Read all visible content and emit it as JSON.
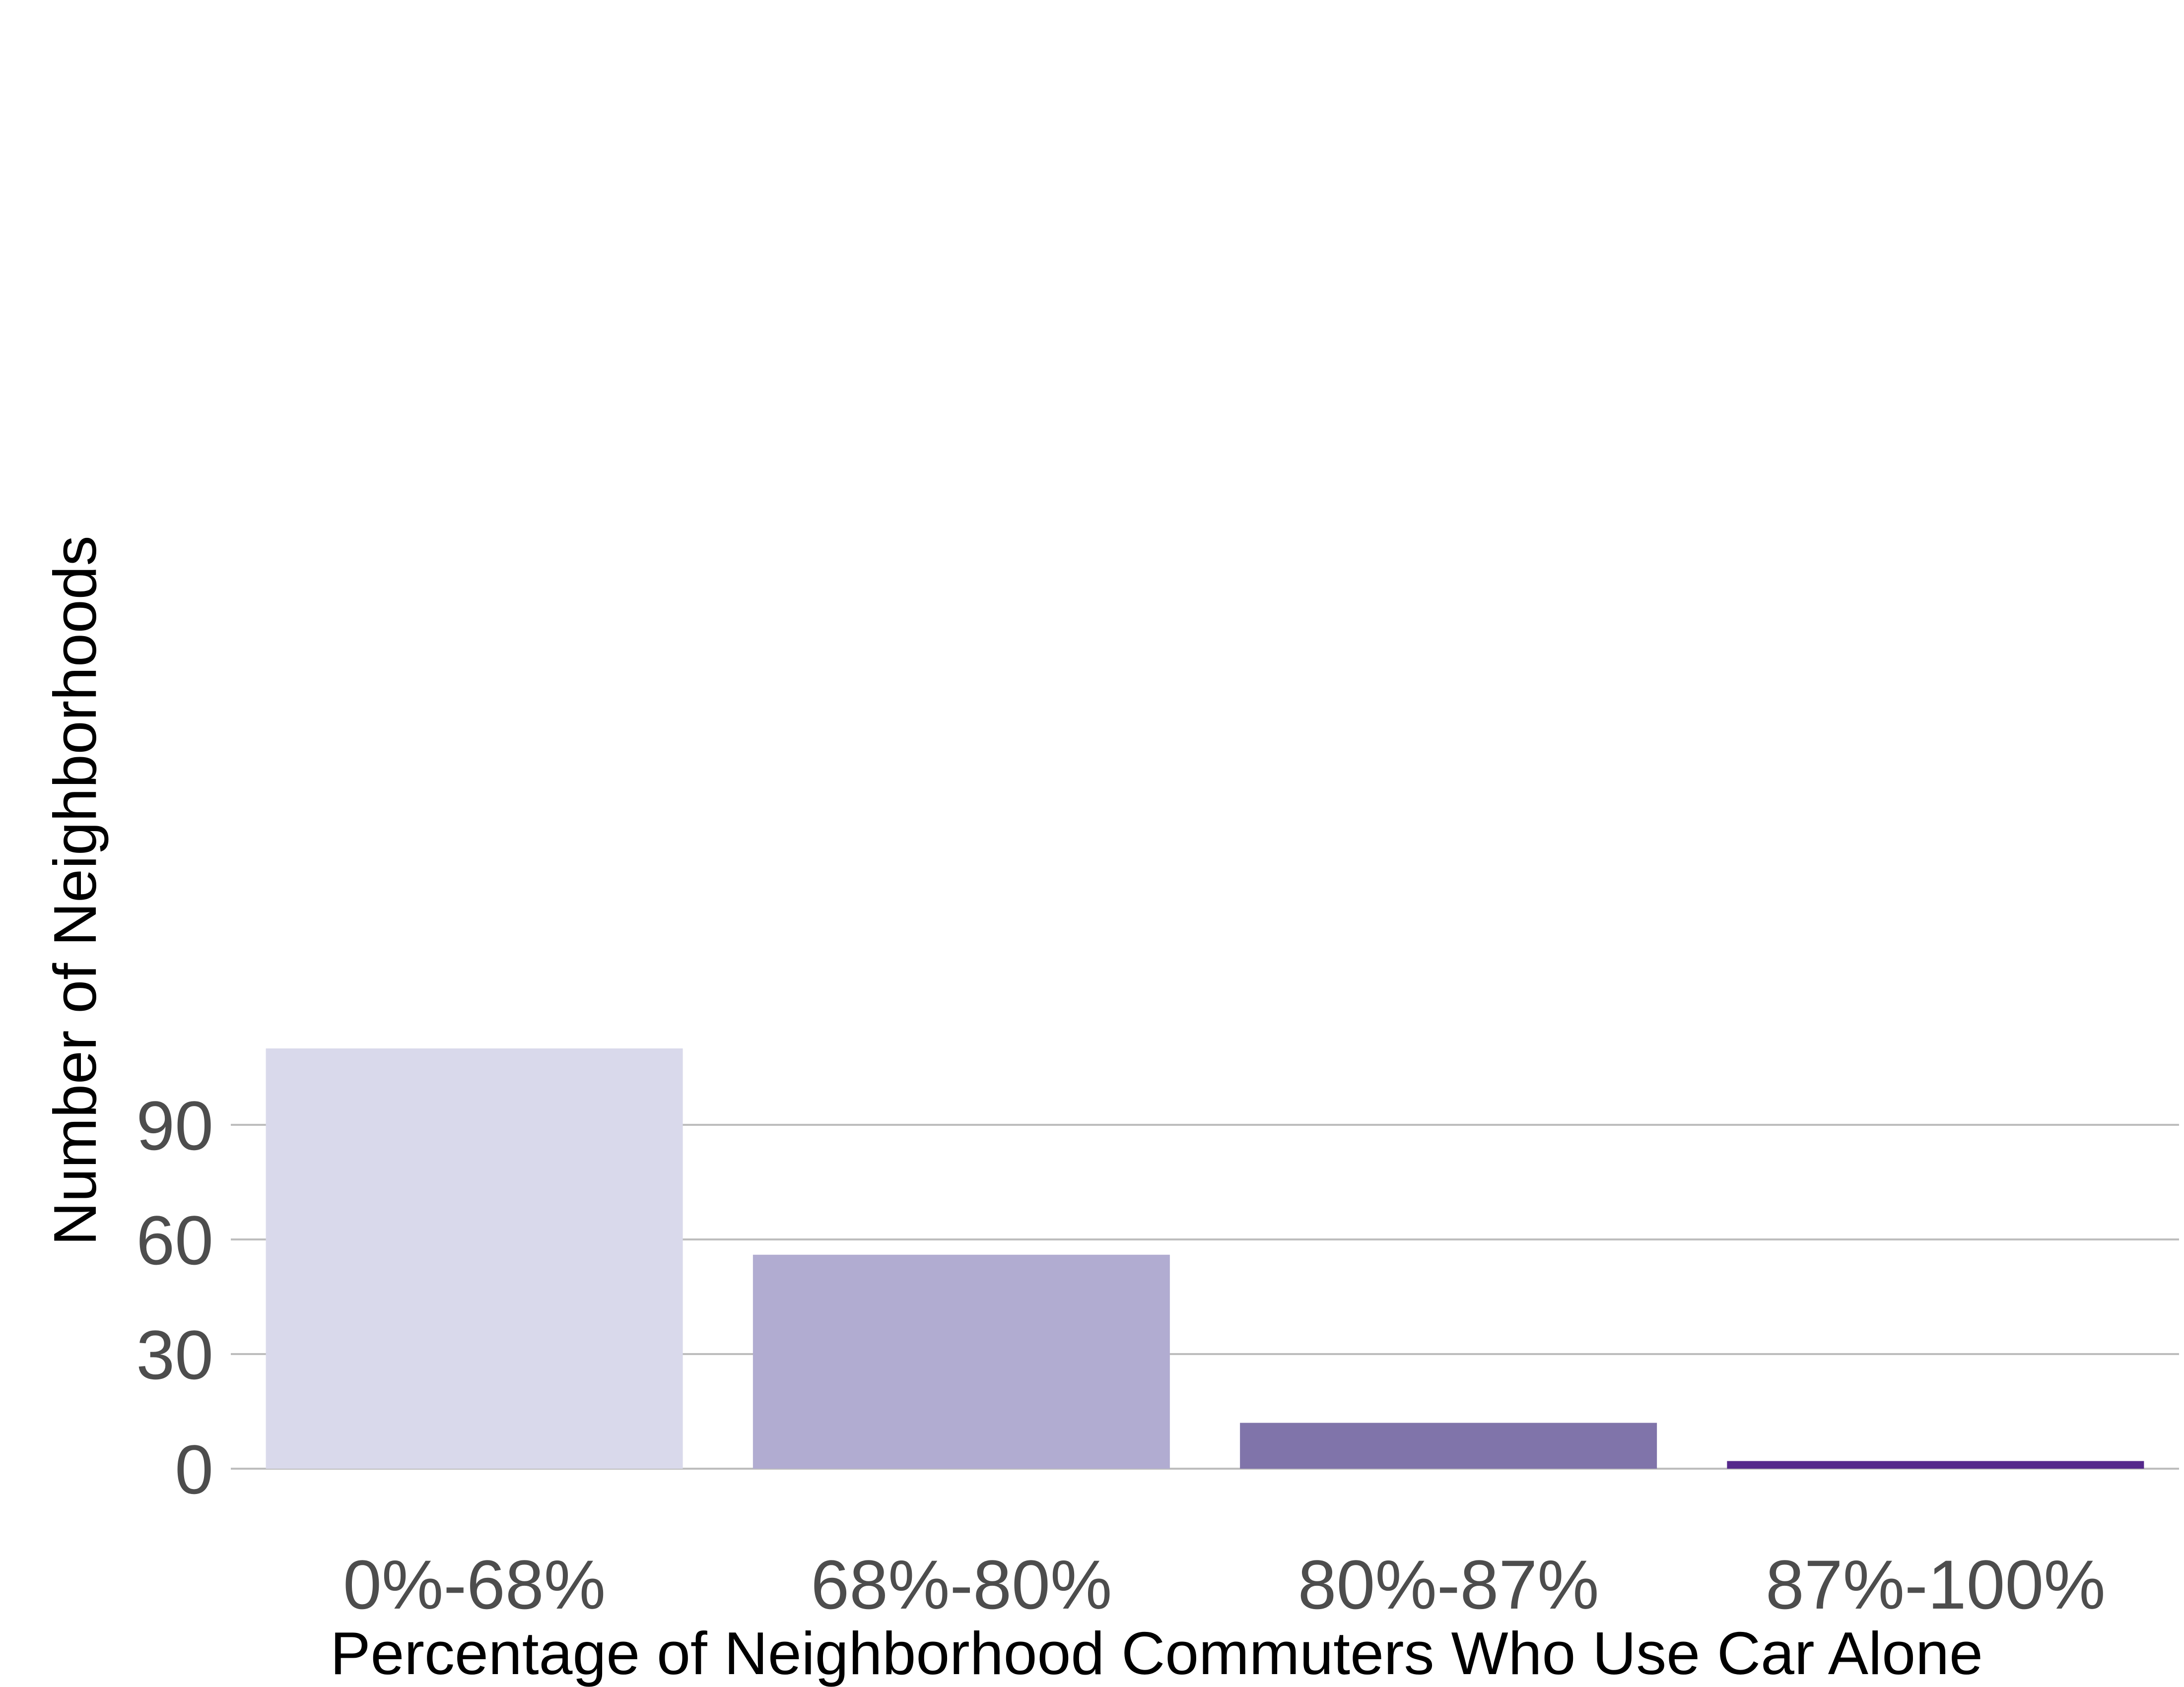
{
  "chart_data": {
    "type": "bar",
    "title": "",
    "xlabel": "Percentage of Neighborhood Commuters Who Use Car Alone",
    "ylabel": "Number of Neighborhoods",
    "categories": [
      "0%-68%",
      "68%-80%",
      "80%-87%",
      "87%-100%"
    ],
    "values": [
      110,
      56,
      12,
      2
    ],
    "colors": [
      "#d9d9eb",
      "#b1acd1",
      "#8074aa",
      "#55288b"
    ],
    "yticks": [
      0,
      30,
      60,
      90
    ],
    "ytick_labels": [
      "0",
      "30",
      "60",
      "90"
    ],
    "ylim": [
      0,
      110
    ],
    "grid": "horizontal",
    "legend": "none",
    "gridline_color": "#bdbdbd"
  }
}
